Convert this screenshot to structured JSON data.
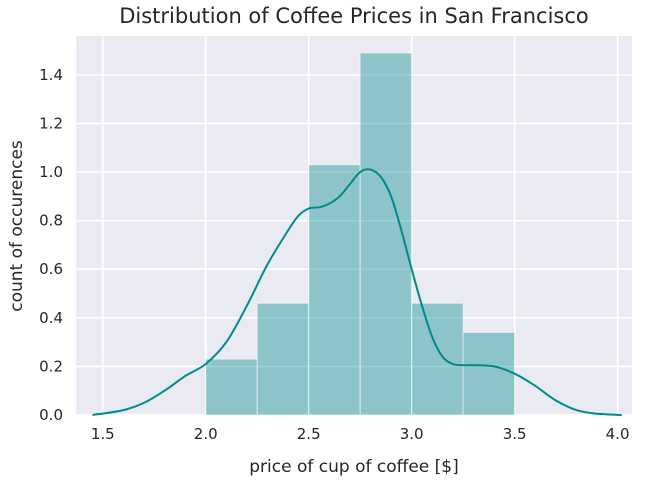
{
  "chart_data": {
    "type": "bar",
    "title": "Distribution of Coffee Prices in San Francisco",
    "xlabel": "price of cup of coffee [$]",
    "ylabel": "count of occurences",
    "xlim": [
      1.37,
      4.07
    ],
    "ylim": [
      0,
      1.56
    ],
    "xticks": [
      "1.5",
      "2.0",
      "2.5",
      "3.0",
      "3.5",
      "4.0"
    ],
    "yticks": [
      "0.0",
      "0.2",
      "0.4",
      "0.6",
      "0.8",
      "1.0",
      "1.2",
      "1.4"
    ],
    "grid": true,
    "bar_color": "#008b8b",
    "kde_color": "#008b8b",
    "background": "#eaeaf2",
    "bins": [
      {
        "x0": 2.0,
        "x1": 2.25,
        "value": 0.23
      },
      {
        "x0": 2.25,
        "x1": 2.5,
        "value": 0.46
      },
      {
        "x0": 2.5,
        "x1": 2.75,
        "value": 1.03
      },
      {
        "x0": 2.75,
        "x1": 3.0,
        "value": 1.49
      },
      {
        "x0": 3.0,
        "x1": 3.25,
        "value": 0.46
      },
      {
        "x0": 3.25,
        "x1": 3.5,
        "value": 0.34
      }
    ],
    "kde": {
      "x": [
        1.45,
        1.6,
        1.7,
        1.8,
        1.9,
        2.0,
        2.1,
        2.2,
        2.3,
        2.4,
        2.45,
        2.5,
        2.55,
        2.6,
        2.65,
        2.7,
        2.75,
        2.8,
        2.85,
        2.9,
        2.95,
        3.0,
        3.05,
        3.1,
        3.15,
        3.2,
        3.25,
        3.3,
        3.4,
        3.5,
        3.6,
        3.7,
        3.8,
        3.9,
        4.02
      ],
      "y": [
        0.0,
        0.02,
        0.05,
        0.1,
        0.16,
        0.21,
        0.3,
        0.45,
        0.62,
        0.76,
        0.82,
        0.85,
        0.855,
        0.87,
        0.9,
        0.95,
        1.0,
        1.01,
        0.98,
        0.9,
        0.76,
        0.6,
        0.45,
        0.32,
        0.24,
        0.21,
        0.205,
        0.205,
        0.2,
        0.17,
        0.12,
        0.06,
        0.02,
        0.005,
        0.0
      ]
    }
  }
}
